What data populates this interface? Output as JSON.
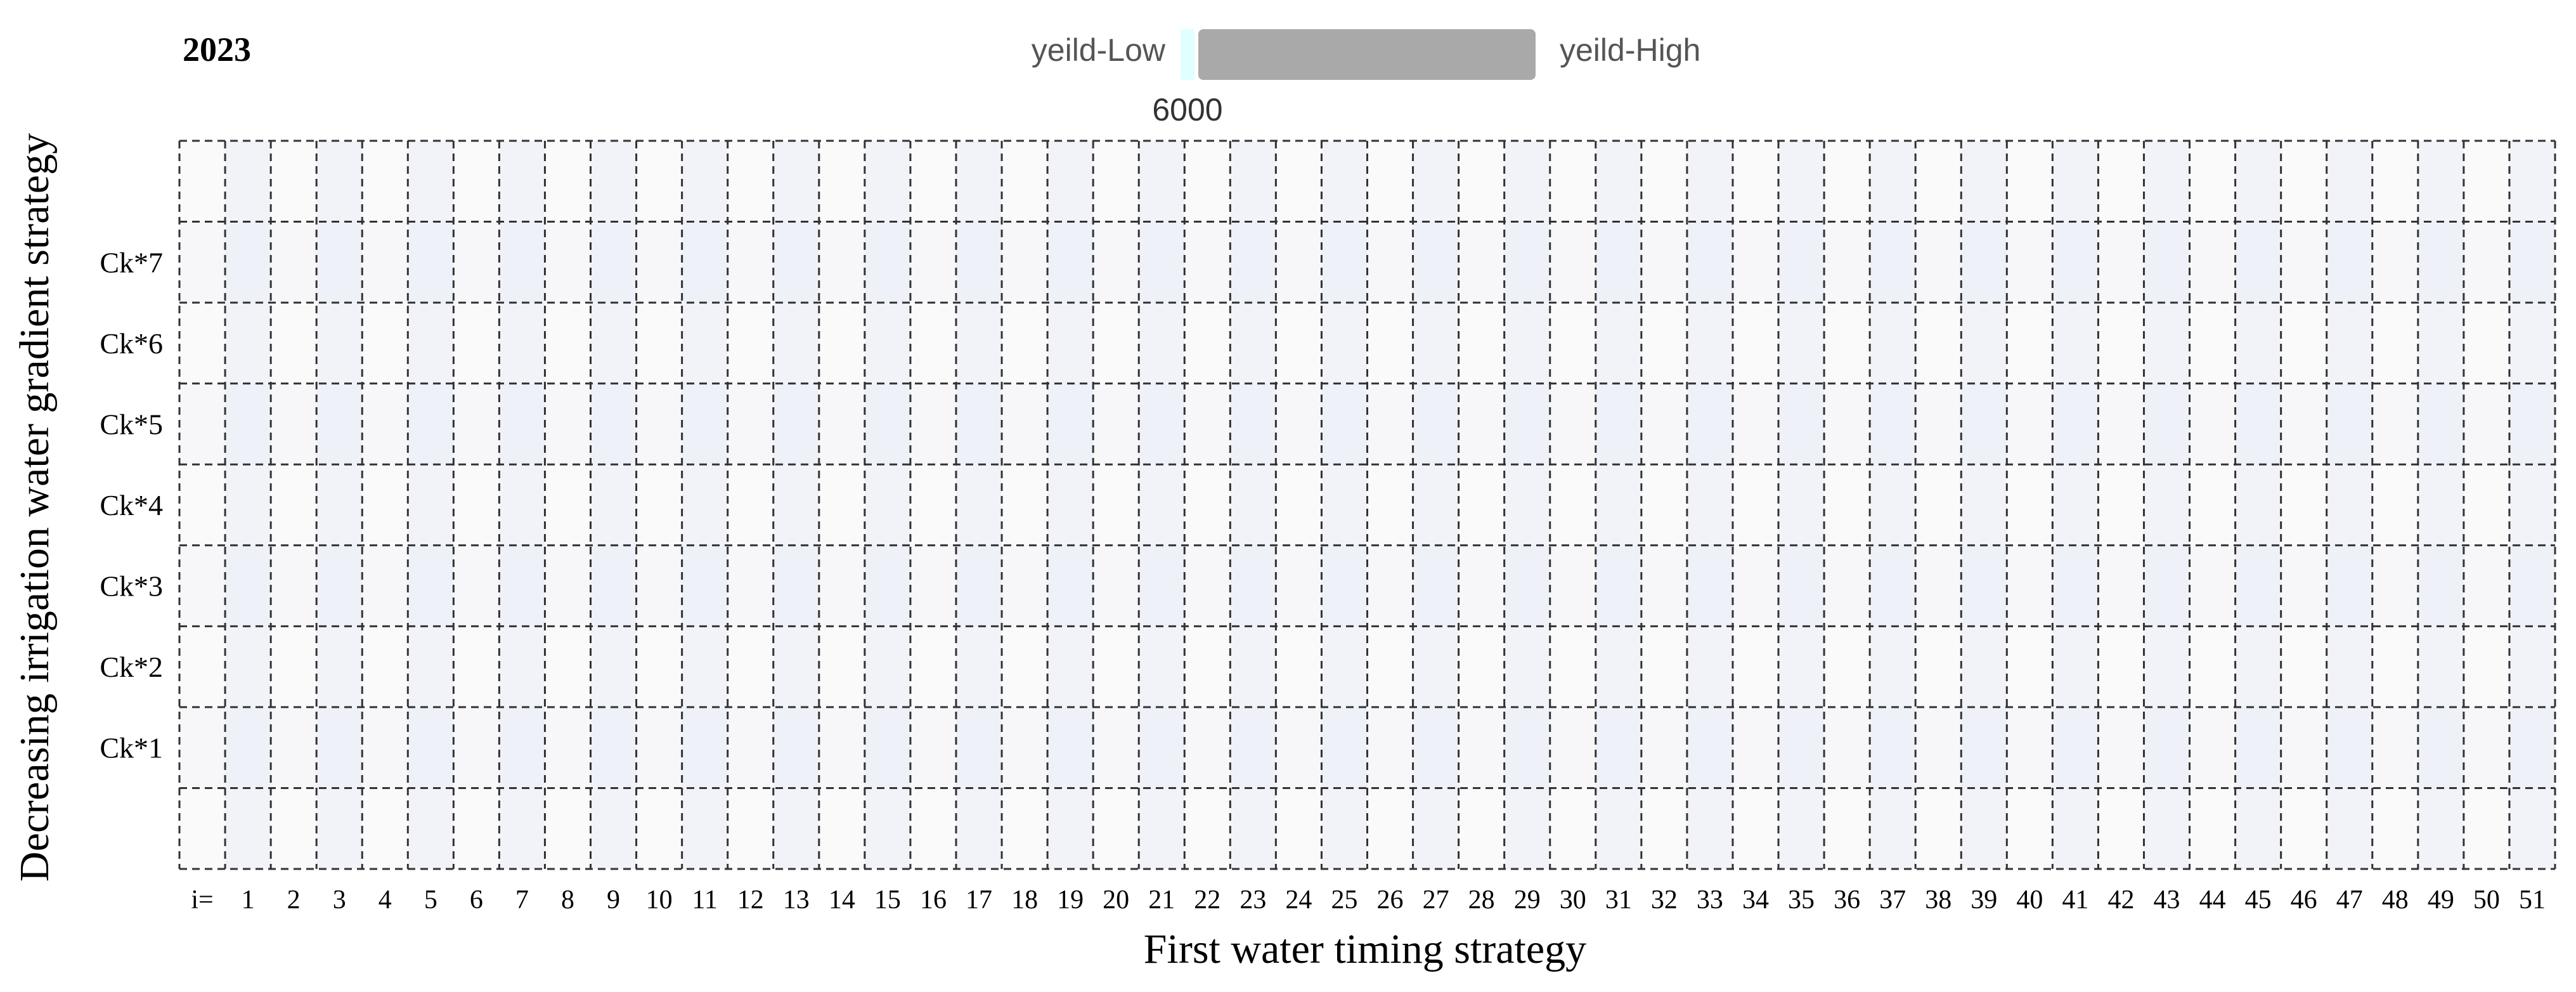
{
  "chart_data": {
    "type": "heatmap",
    "title": "2023",
    "xlabel": "First water timing strategy",
    "ylabel": "Decreasing irrigation water gradient strategy",
    "x_prefix": "i=",
    "x_categories": [
      "1",
      "2",
      "3",
      "4",
      "5",
      "6",
      "7",
      "8",
      "9",
      "10",
      "11",
      "12",
      "13",
      "14",
      "15",
      "16",
      "17",
      "18",
      "19",
      "20",
      "21",
      "22",
      "23",
      "24",
      "25",
      "26",
      "27",
      "28",
      "29",
      "30",
      "31",
      "32",
      "33",
      "34",
      "35",
      "36",
      "37",
      "38",
      "39",
      "40",
      "41",
      "42",
      "43",
      "44",
      "45",
      "46",
      "47",
      "48",
      "49",
      "50",
      "51"
    ],
    "y_categories": [
      "Ck*7",
      "Ck*6",
      "Ck*5",
      "Ck*4",
      "Ck*3",
      "Ck*2",
      "Ck*1"
    ],
    "legend": {
      "low_label": "yeild-Low",
      "high_label": "yeild-High",
      "tick_value": "6000",
      "low_color": "#e0ffff",
      "high_color": "#a9a9a9",
      "placement": "top-center"
    },
    "grid": true,
    "cell_colors": {
      "odd_column_odd_row": "#eef1f8",
      "odd_column": "#f1f3f9",
      "odd_row": "#f7f7f9",
      "default": "#fafafa"
    }
  }
}
